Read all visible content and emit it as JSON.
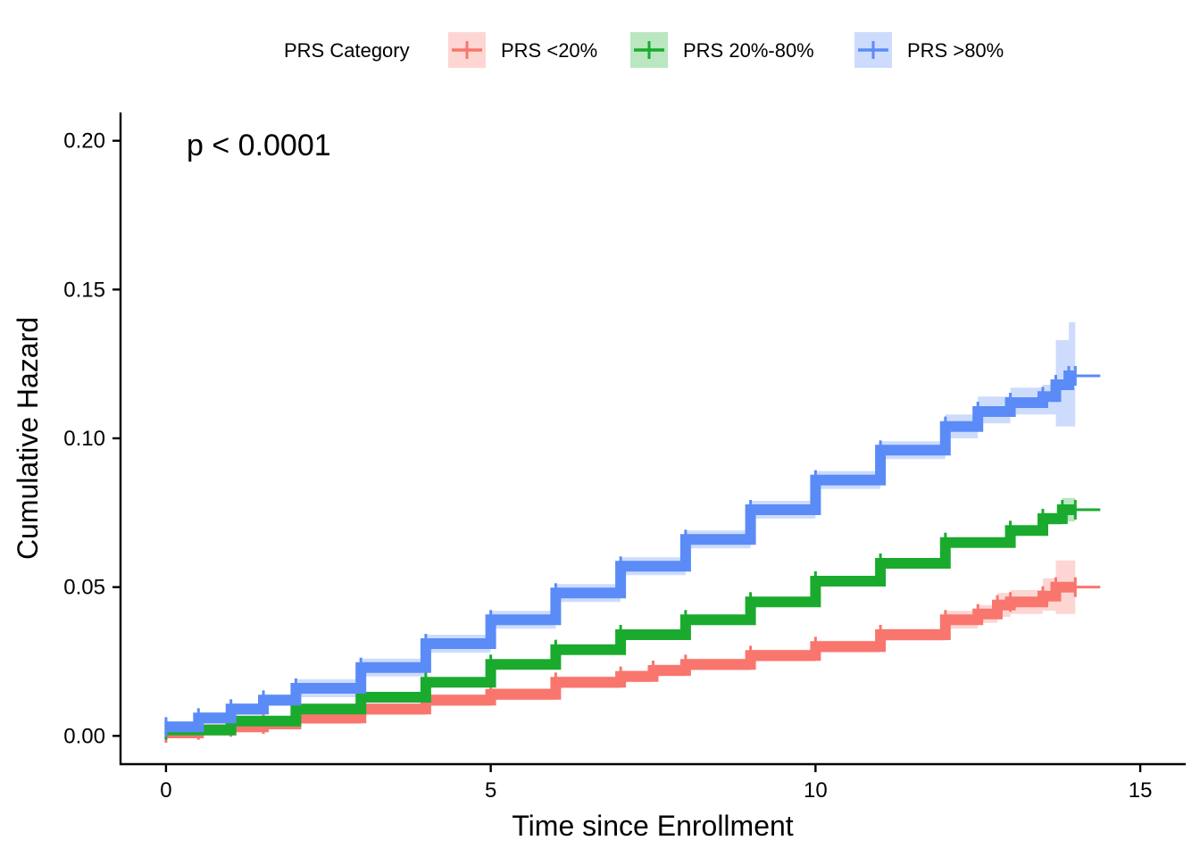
{
  "chart_data": {
    "type": "line",
    "xlabel": "Time since Enrollment",
    "ylabel": "Cumulative Hazard",
    "xlim": [
      -0.7,
      15.7
    ],
    "ylim": [
      -0.0095,
      0.2095
    ],
    "xticks": [
      0,
      5,
      10,
      15
    ],
    "xtick_labels": [
      "0",
      "5",
      "10",
      "15"
    ],
    "yticks": [
      0.0,
      0.05,
      0.1,
      0.15,
      0.2
    ],
    "ytick_labels": [
      "0.00",
      "0.05",
      "0.10",
      "0.15",
      "0.20"
    ],
    "annotation": "p < 0.0001",
    "legend": {
      "title": "PRS Category",
      "position": "top"
    },
    "grid": false,
    "series": [
      {
        "name": "PRS <20%",
        "color": "#F8766D",
        "x": [
          0,
          0.5,
          1,
          1.5,
          2,
          3,
          4,
          5,
          6,
          7,
          7.5,
          8,
          9,
          10,
          11,
          12,
          12.5,
          12.8,
          13,
          13.5,
          13.7,
          14.0
        ],
        "values": [
          0.001,
          0.002,
          0.003,
          0.004,
          0.006,
          0.009,
          0.012,
          0.014,
          0.018,
          0.02,
          0.022,
          0.024,
          0.027,
          0.03,
          0.034,
          0.039,
          0.041,
          0.044,
          0.045,
          0.047,
          0.05,
          0.05
        ],
        "ci_lower": [
          0.0,
          0.001,
          0.002,
          0.003,
          0.004,
          0.007,
          0.01,
          0.012,
          0.016,
          0.018,
          0.02,
          0.022,
          0.025,
          0.028,
          0.032,
          0.036,
          0.038,
          0.04,
          0.041,
          0.042,
          0.041,
          0.041
        ],
        "ci_upper": [
          0.003,
          0.004,
          0.005,
          0.006,
          0.008,
          0.011,
          0.014,
          0.016,
          0.02,
          0.022,
          0.024,
          0.026,
          0.029,
          0.032,
          0.036,
          0.042,
          0.044,
          0.048,
          0.049,
          0.053,
          0.059,
          0.059
        ]
      },
      {
        "name": "PRS 20%-80%",
        "color": "#1AAB2E",
        "x": [
          0,
          1,
          2,
          3,
          4,
          5,
          6,
          7,
          8,
          9,
          10,
          11,
          12,
          13,
          13.5,
          13.8,
          14.0
        ],
        "values": [
          0.002,
          0.005,
          0.009,
          0.013,
          0.018,
          0.024,
          0.029,
          0.034,
          0.039,
          0.045,
          0.052,
          0.058,
          0.065,
          0.069,
          0.073,
          0.076,
          0.076
        ],
        "ci_lower": [
          0.001,
          0.004,
          0.008,
          0.012,
          0.017,
          0.023,
          0.028,
          0.033,
          0.038,
          0.044,
          0.051,
          0.057,
          0.064,
          0.068,
          0.071,
          0.072,
          0.072
        ],
        "ci_upper": [
          0.003,
          0.006,
          0.01,
          0.014,
          0.019,
          0.025,
          0.03,
          0.035,
          0.04,
          0.046,
          0.053,
          0.059,
          0.066,
          0.07,
          0.075,
          0.08,
          0.08
        ]
      },
      {
        "name": "PRS >80%",
        "color": "#5B8BF7",
        "x": [
          0,
          0.5,
          1,
          1.5,
          2,
          3,
          4,
          5,
          6,
          7,
          8,
          9,
          10,
          11,
          12,
          12.5,
          13,
          13.5,
          13.7,
          13.9,
          14.0
        ],
        "values": [
          0.003,
          0.006,
          0.009,
          0.012,
          0.016,
          0.023,
          0.031,
          0.039,
          0.048,
          0.057,
          0.066,
          0.076,
          0.086,
          0.096,
          0.104,
          0.109,
          0.112,
          0.114,
          0.118,
          0.121,
          0.121
        ],
        "ci_lower": [
          0.001,
          0.004,
          0.007,
          0.01,
          0.013,
          0.02,
          0.028,
          0.036,
          0.045,
          0.054,
          0.063,
          0.073,
          0.083,
          0.093,
          0.1,
          0.105,
          0.108,
          0.108,
          0.104,
          0.104,
          0.104
        ],
        "ci_upper": [
          0.005,
          0.008,
          0.011,
          0.014,
          0.019,
          0.026,
          0.034,
          0.042,
          0.051,
          0.06,
          0.069,
          0.079,
          0.089,
          0.099,
          0.108,
          0.114,
          0.117,
          0.118,
          0.133,
          0.139,
          0.139
        ]
      }
    ]
  }
}
